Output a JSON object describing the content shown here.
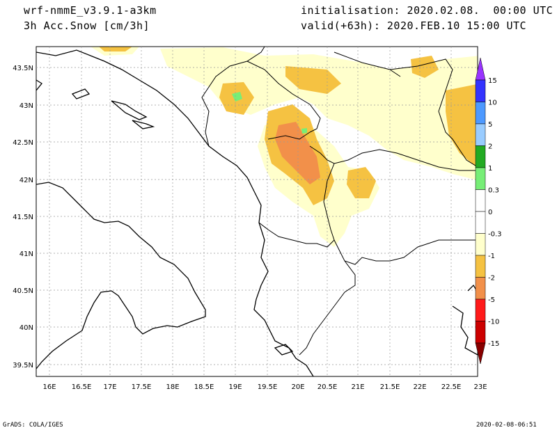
{
  "header": {
    "model": "wrf-nmmE_v3.9.1-a3km",
    "field": "3h Acc.Snow [cm/3h]",
    "initialisation": "initialisation: 2020.02.08.  00:00 UTC",
    "valid": "valid(+63h): 2020.FEB.10 15:00 UTC"
  },
  "footer": {
    "left": "GrADS: COLA/IGES",
    "right": "2020-02-08-06:51"
  },
  "map": {
    "lat_labels": [
      "43.5N",
      "43N",
      "42.5N",
      "42N",
      "41.5N",
      "41N",
      "40.5N",
      "40N",
      "39.5N"
    ],
    "lon_labels": [
      "16E",
      "16.5E",
      "17E",
      "17.5E",
      "18E",
      "18.5E",
      "19E",
      "19.5E",
      "20E",
      "20.5E",
      "21E",
      "21.5E",
      "22E",
      "22.5E",
      "23E"
    ]
  },
  "colorbar": {
    "labels": [
      "15",
      "10",
      "5",
      "2",
      "1",
      "0.3",
      "0",
      "-0.3",
      "-1",
      "-2",
      "-5",
      "-10",
      "-15"
    ],
    "colors": [
      "#9933ff",
      "#3333ff",
      "#4d99ff",
      "#99ccff",
      "#22aa22",
      "#77ee77",
      "#ffffff",
      "#ffffff",
      "#ffffcc",
      "#f5c242",
      "#f2904a",
      "#ff1a1a",
      "#cc0000",
      "#880000"
    ]
  }
}
